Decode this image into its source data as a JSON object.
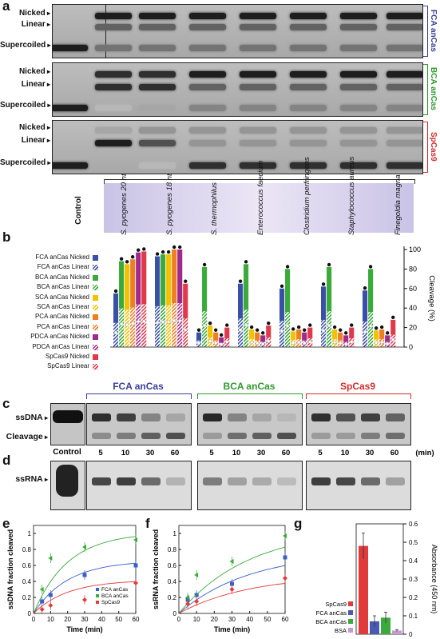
{
  "panels": {
    "a": "a",
    "b": "b",
    "c": "c",
    "d": "d",
    "e": "e",
    "f": "f",
    "g": "g"
  },
  "panel_a": {
    "gels": [
      {
        "enzyme": "FCA anCas",
        "color": "#3a3f9a",
        "labels": [
          "Nicked",
          "Linear",
          "Supercoiled"
        ]
      },
      {
        "enzyme": "BCA anCas",
        "color": "#2c9a2c",
        "labels": [
          "Nicked",
          "Linear",
          "Supercoiled"
        ]
      },
      {
        "enzyme": "SpCas9",
        "color": "#d42a2a",
        "labels": [
          "Nicked",
          "Linear",
          "Supercoiled"
        ]
      }
    ],
    "lanes": [
      "Control",
      "S. pyogenes 20 nt",
      "S. pyogenes 18 nt",
      "S. thermophilus",
      "Enterococcus faecium",
      "Clostridium perfringens",
      "Staphylococcus aureus",
      "Finegoldia magna"
    ]
  },
  "panel_b": {
    "legend": [
      {
        "label": "FCA anCas Nicked",
        "color": "#3a4fa8",
        "pattern": "solid"
      },
      {
        "label": "FCA anCas Linear",
        "color": "#3a4fa8",
        "pattern": "hatch"
      },
      {
        "label": "BCA anCas Nicked",
        "color": "#3aaa3a",
        "pattern": "solid"
      },
      {
        "label": "BCA anCas Linear",
        "color": "#3aaa3a",
        "pattern": "hatch"
      },
      {
        "label": "SCA anCas Nicked",
        "color": "#f2c200",
        "pattern": "solid"
      },
      {
        "label": "SCA anCas Linear",
        "color": "#f2c200",
        "pattern": "hatch"
      },
      {
        "label": "PCA anCas Nicked",
        "color": "#ef7d22",
        "pattern": "solid"
      },
      {
        "label": "PCA anCas Linear",
        "color": "#ef7d22",
        "pattern": "hatch"
      },
      {
        "label": "PDCA anCas Nicked",
        "color": "#a02a8a",
        "pattern": "solid"
      },
      {
        "label": "PDCA anCas Linear",
        "color": "#a02a8a",
        "pattern": "hatch"
      },
      {
        "label": "SpCas9 Nicked",
        "color": "#e03a4a",
        "pattern": "solid"
      },
      {
        "label": "SpCas9 Linear",
        "color": "#e03a4a",
        "pattern": "hatch"
      }
    ],
    "ylabel": "Cleavage (%)",
    "yticks": [
      "0",
      "20",
      "40",
      "60",
      "80",
      "100"
    ]
  },
  "panel_c": {
    "labels": [
      "ssDNA",
      "Cleavage"
    ],
    "groups": [
      {
        "name": "FCA anCas",
        "color": "#3a3f9a"
      },
      {
        "name": "BCA anCas",
        "color": "#2c9a2c"
      },
      {
        "name": "SpCas9",
        "color": "#d42a2a"
      }
    ],
    "control": "Control",
    "times": [
      "5",
      "10",
      "30",
      "60",
      "5",
      "10",
      "30",
      "60",
      "5",
      "10",
      "30",
      "60"
    ],
    "unit": "(min)"
  },
  "panel_d": {
    "label": "ssRNA"
  },
  "chart_data": [
    {
      "type": "bar",
      "panel": "b",
      "ylabel": "Cleavage (%)",
      "ylim": [
        0,
        100
      ],
      "categories": [
        "S. pyogenes 20 nt",
        "S. pyogenes 18 nt",
        "S. thermophilus",
        "Enterococcus faecium",
        "Clostridium perfringens",
        "Staphylococcus aureus",
        "Finegoldia magna"
      ],
      "series": [
        {
          "name": "FCA anCas",
          "values": [
            55,
            93,
            15,
            65,
            60,
            62,
            58
          ]
        },
        {
          "name": "BCA anCas",
          "values": [
            88,
            95,
            82,
            85,
            80,
            82,
            80
          ]
        },
        {
          "name": "SCA anCas",
          "values": [
            85,
            95,
            22,
            18,
            16,
            18,
            17
          ]
        },
        {
          "name": "PCA anCas",
          "values": [
            90,
            100,
            15,
            15,
            18,
            15,
            18
          ]
        },
        {
          "name": "PDCA anCas",
          "values": [
            97,
            100,
            10,
            12,
            15,
            12,
            12
          ]
        },
        {
          "name": "SpCas9",
          "values": [
            98,
            65,
            20,
            22,
            20,
            20,
            28
          ]
        }
      ]
    },
    {
      "type": "scatter",
      "panel": "e",
      "xlabel": "Time (min)",
      "ylabel": "ssDNA fraction cleaved",
      "xlim": [
        0,
        60
      ],
      "ylim": [
        0,
        1.1
      ],
      "xticks": [
        "0",
        "10",
        "20",
        "30",
        "40",
        "50",
        "60"
      ],
      "yticks": [
        "0",
        "0.2",
        "0.4",
        "0.6",
        "0.8",
        "1"
      ],
      "x": [
        5,
        10,
        30,
        60
      ],
      "series": [
        {
          "name": "FCA anCas",
          "color": "#3a5fc8",
          "values": [
            0.15,
            0.23,
            0.48,
            0.6
          ]
        },
        {
          "name": "BCA anCas",
          "color": "#3aaa3a",
          "values": [
            0.3,
            0.69,
            0.83,
            0.92
          ]
        },
        {
          "name": "SpCas9",
          "color": "#e23a3a",
          "values": [
            0.05,
            0.1,
            0.17,
            0.38
          ]
        }
      ]
    },
    {
      "type": "scatter",
      "panel": "f",
      "xlabel": "Time (min)",
      "ylabel": "ssRNA fraction cleaved",
      "xlim": [
        0,
        60
      ],
      "ylim": [
        0,
        1.1
      ],
      "xticks": [
        "0",
        "10",
        "20",
        "30",
        "40",
        "50",
        "60"
      ],
      "yticks": [
        "0",
        "0.2",
        "0.4",
        "0.6",
        "0.8",
        "1"
      ],
      "x": [
        5,
        10,
        30,
        60
      ],
      "series": [
        {
          "name": "FCA anCas",
          "color": "#3a5fc8",
          "values": [
            0.17,
            0.23,
            0.37,
            0.7
          ]
        },
        {
          "name": "BCA anCas",
          "color": "#3aaa3a",
          "values": [
            0.2,
            0.48,
            0.65,
            0.97
          ]
        },
        {
          "name": "SpCas9",
          "color": "#e23a3a",
          "values": [
            0.12,
            0.15,
            0.3,
            0.44
          ]
        }
      ]
    },
    {
      "type": "bar",
      "panel": "g",
      "ylabel": "Absorbance (450 nm)",
      "ylim": [
        0,
        0.6
      ],
      "yticks": [
        "0",
        "0.1",
        "0.2",
        "0.3",
        "0.4",
        "0.5",
        "0.6"
      ],
      "categories": [
        "SpCas9",
        "FCA anCas",
        "BCA anCas",
        "BSA"
      ],
      "colors": [
        "#e03a3a",
        "#4a5ab0",
        "#3aaa3a",
        "#c59ad0"
      ],
      "values": [
        0.48,
        0.07,
        0.09,
        0.02
      ],
      "errors": [
        0.07,
        0.03,
        0.03,
        0.005
      ]
    }
  ]
}
